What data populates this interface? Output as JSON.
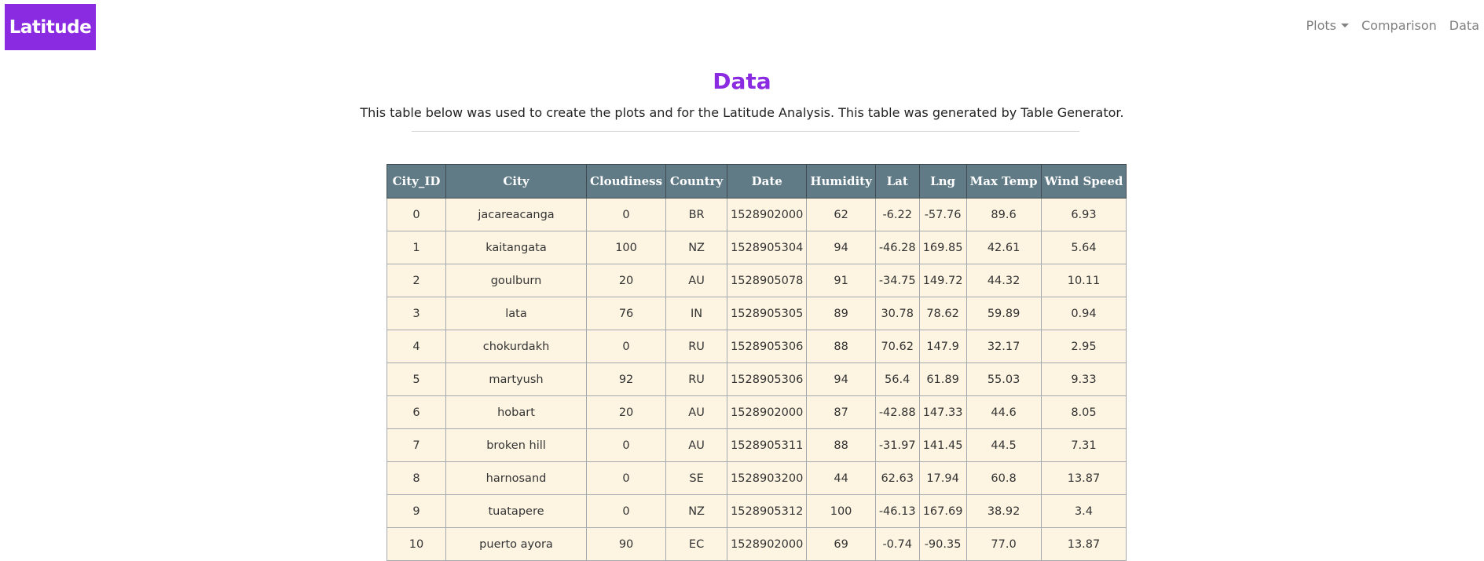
{
  "brand": "Latitude",
  "nav": {
    "plots": "Plots",
    "comparison": "Comparison",
    "data": "Data"
  },
  "page": {
    "title": "Data",
    "description": "This table below was used to create the plots and for the Latitude Analysis. This table was generated by Table Generator."
  },
  "colors": {
    "brand": "#8a2be2",
    "table_header": "#607b86",
    "table_body": "#fdf5e2"
  },
  "table": {
    "columns": [
      "City_ID",
      "City",
      "Cloudiness",
      "Country",
      "Date",
      "Humidity",
      "Lat",
      "Lng",
      "Max Temp",
      "Wind Speed"
    ],
    "rows": [
      [
        "0",
        "jacareacanga",
        "0",
        "BR",
        "1528902000",
        "62",
        "-6.22",
        "-57.76",
        "89.6",
        "6.93"
      ],
      [
        "1",
        "kaitangata",
        "100",
        "NZ",
        "1528905304",
        "94",
        "-46.28",
        "169.85",
        "42.61",
        "5.64"
      ],
      [
        "2",
        "goulburn",
        "20",
        "AU",
        "1528905078",
        "91",
        "-34.75",
        "149.72",
        "44.32",
        "10.11"
      ],
      [
        "3",
        "lata",
        "76",
        "IN",
        "1528905305",
        "89",
        "30.78",
        "78.62",
        "59.89",
        "0.94"
      ],
      [
        "4",
        "chokurdakh",
        "0",
        "RU",
        "1528905306",
        "88",
        "70.62",
        "147.9",
        "32.17",
        "2.95"
      ],
      [
        "5",
        "martyush",
        "92",
        "RU",
        "1528905306",
        "94",
        "56.4",
        "61.89",
        "55.03",
        "9.33"
      ],
      [
        "6",
        "hobart",
        "20",
        "AU",
        "1528902000",
        "87",
        "-42.88",
        "147.33",
        "44.6",
        "8.05"
      ],
      [
        "7",
        "broken hill",
        "0",
        "AU",
        "1528905311",
        "88",
        "-31.97",
        "141.45",
        "44.5",
        "7.31"
      ],
      [
        "8",
        "harnosand",
        "0",
        "SE",
        "1528903200",
        "44",
        "62.63",
        "17.94",
        "60.8",
        "13.87"
      ],
      [
        "9",
        "tuatapere",
        "0",
        "NZ",
        "1528905312",
        "100",
        "-46.13",
        "167.69",
        "38.92",
        "3.4"
      ],
      [
        "10",
        "puerto ayora",
        "90",
        "EC",
        "1528902000",
        "69",
        "-0.74",
        "-90.35",
        "77.0",
        "13.87"
      ]
    ]
  }
}
